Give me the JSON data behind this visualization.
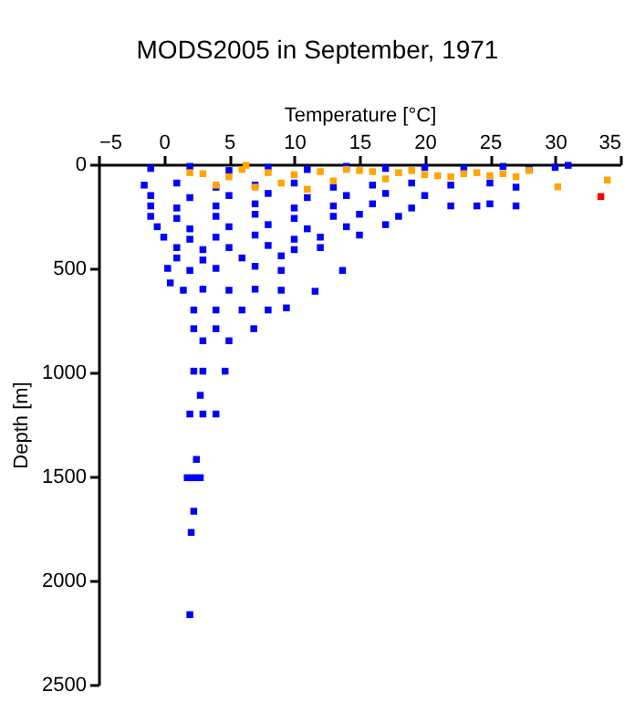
{
  "chart_data": {
    "type": "scatter",
    "title": "MODS2005 in September, 1971",
    "xlabel": "Temperature [°C]",
    "ylabel": "Depth [m]",
    "xlim": [
      -5,
      35
    ],
    "xticks": [
      -5,
      0,
      5,
      10,
      15,
      20,
      25,
      30,
      35
    ],
    "ylim": [
      2500,
      0
    ],
    "yticks": [
      0,
      500,
      1000,
      1500,
      2000,
      2500
    ],
    "grid": false,
    "marker": "square",
    "series": [
      {
        "color": "#0000ff",
        "x": [
          -1,
          2,
          5,
          8,
          11,
          14,
          17,
          20,
          23,
          26,
          28,
          30,
          31,
          -1.5,
          1,
          4,
          7,
          10,
          13,
          16,
          19,
          22,
          25,
          27,
          -1,
          2,
          5,
          8,
          11,
          14,
          17,
          20,
          24,
          27,
          -1,
          1,
          4,
          7,
          10,
          13,
          16,
          19,
          22,
          25,
          -1,
          1,
          4,
          7,
          10,
          13,
          15,
          18,
          -0.5,
          2,
          5,
          8,
          11,
          14,
          17,
          0,
          2,
          4,
          7,
          10,
          12,
          15,
          1,
          3,
          5,
          8,
          10,
          12,
          1,
          3,
          6,
          9,
          13.7,
          0.3,
          2,
          4,
          7,
          9,
          0.5,
          1.5,
          3,
          5,
          7,
          9,
          11.6,
          2.3,
          4,
          6,
          8,
          9.4,
          2.3,
          4,
          6.9,
          3,
          5,
          2.3,
          3,
          4.7,
          2.8,
          2,
          3,
          4,
          2.5,
          1.8,
          2.3,
          2.8,
          2.3,
          2.1,
          2.0
        ],
        "values": [
          20,
          10,
          30,
          15,
          25,
          10,
          20,
          15,
          20,
          10,
          25,
          15,
          5,
          100,
          90,
          110,
          100,
          90,
          110,
          100,
          90,
          100,
          90,
          110,
          150,
          160,
          150,
          140,
          160,
          150,
          140,
          150,
          200,
          200,
          200,
          210,
          200,
          190,
          210,
          200,
          190,
          210,
          200,
          190,
          250,
          260,
          250,
          240,
          260,
          250,
          240,
          250,
          300,
          310,
          300,
          290,
          310,
          300,
          290,
          350,
          360,
          350,
          340,
          360,
          350,
          340,
          400,
          410,
          400,
          390,
          410,
          400,
          450,
          460,
          450,
          440,
          510,
          500,
          510,
          500,
          490,
          510,
          570,
          605,
          600,
          605,
          600,
          605,
          610,
          700,
          700,
          700,
          700,
          690,
          790,
          790,
          790,
          848,
          848,
          994,
          994,
          994,
          1110,
          1200,
          1200,
          1200,
          1418,
          1506,
          1506,
          1506,
          1667,
          1769,
          2164
        ]
      },
      {
        "color": "#ffa500",
        "x": [
          6,
          8,
          12,
          15,
          18,
          20,
          22,
          24,
          26,
          28,
          3,
          5,
          10,
          11,
          7,
          4,
          9,
          13,
          17,
          21,
          25,
          30.2,
          34,
          6.3,
          19,
          23,
          16,
          14,
          27,
          2
        ],
        "values": [
          25,
          40,
          35,
          30,
          40,
          50,
          60,
          40,
          45,
          30,
          45,
          60,
          50,
          120,
          110,
          100,
          90,
          80,
          70,
          55,
          55,
          108,
          76,
          5,
          30,
          45,
          35,
          25,
          60,
          40
        ]
      },
      {
        "color": "#ff0000",
        "x": [
          33.5
        ],
        "values": [
          155
        ]
      }
    ]
  }
}
